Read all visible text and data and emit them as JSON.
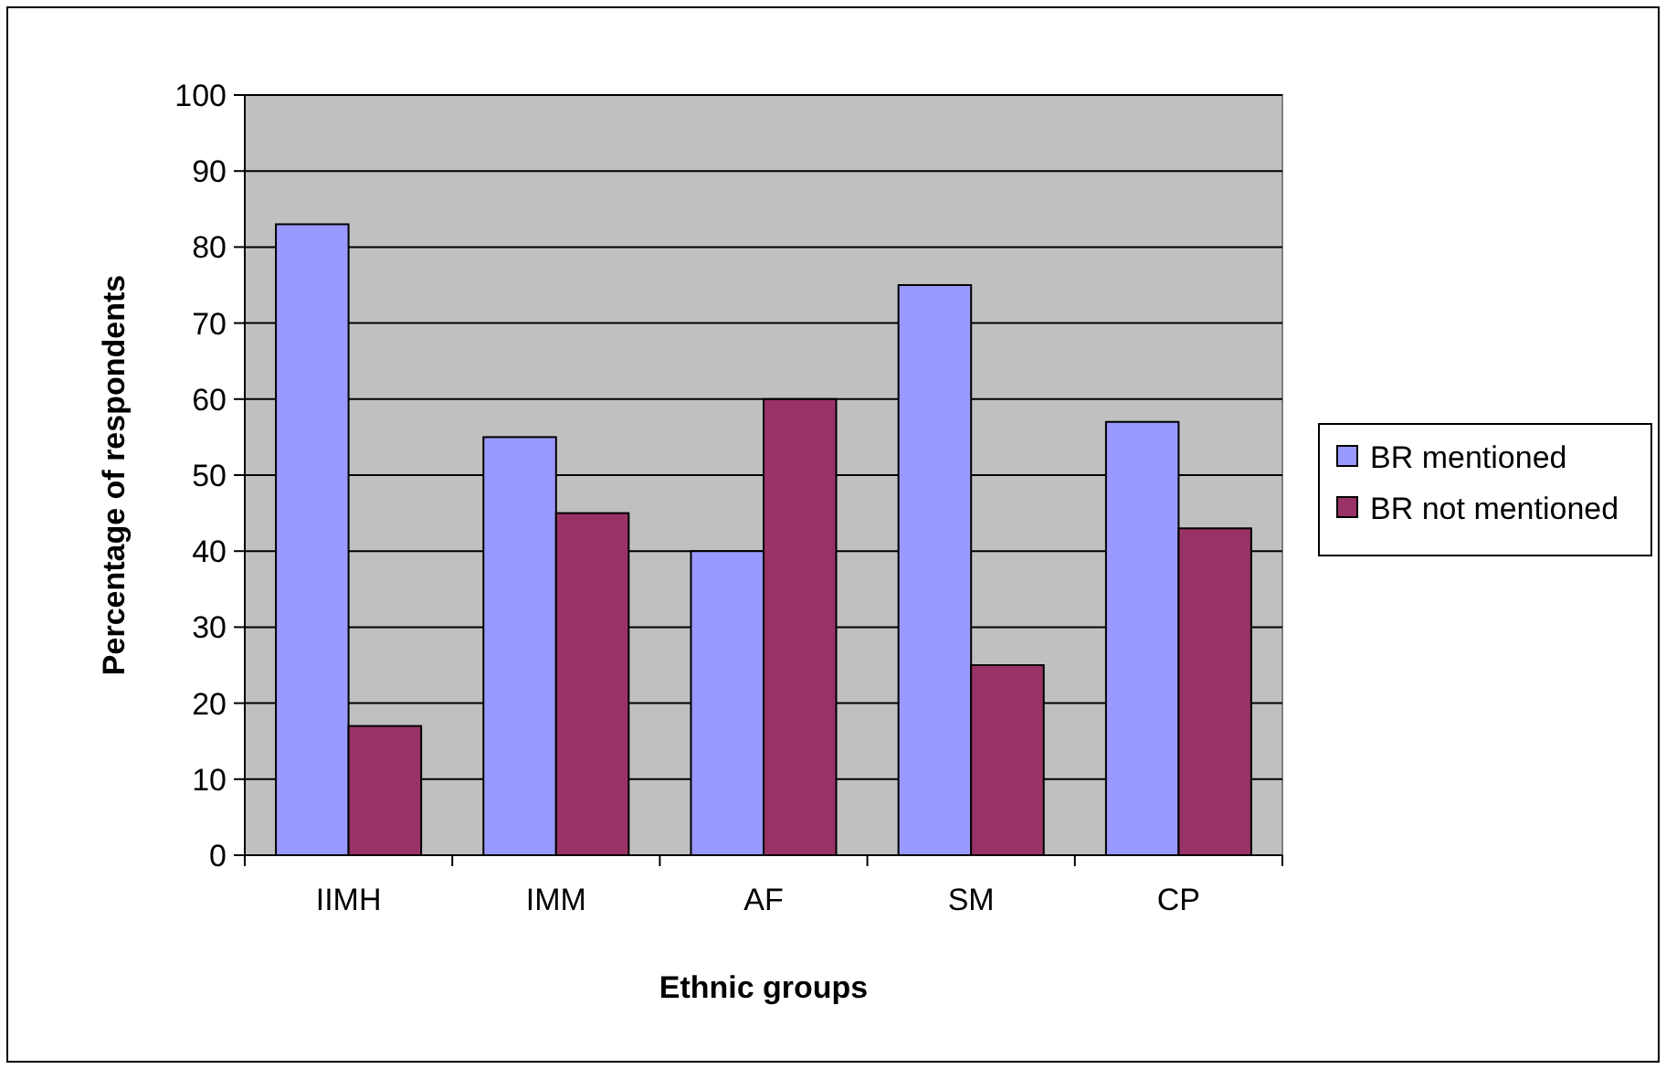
{
  "chart_data": {
    "type": "bar",
    "xlabel": "Ethnic groups",
    "ylabel": "Percentage of respondents",
    "categories": [
      "IIMH",
      "IMM",
      "AF",
      "SM",
      "CP"
    ],
    "series": [
      {
        "name": "BR mentioned",
        "color": "#9999ff",
        "values": [
          83,
          55,
          40,
          75,
          57
        ]
      },
      {
        "name": "BR not mentioned",
        "color": "#993366",
        "values": [
          17,
          45,
          60,
          25,
          43
        ]
      }
    ],
    "ylim": [
      0,
      100
    ],
    "yticks": [
      0,
      10,
      20,
      30,
      40,
      50,
      60,
      70,
      80,
      90,
      100
    ],
    "grid": "y",
    "legend": "right"
  }
}
